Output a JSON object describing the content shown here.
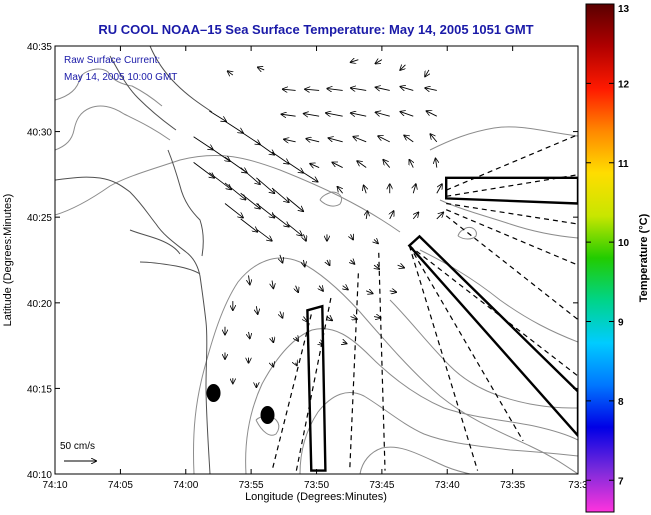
{
  "chart_data": {
    "type": "vector-field-map",
    "title": "RU COOL  NOAA–15  Sea Surface Temperature:  May 14, 2005 1051 GMT",
    "xlabel": "Longitude (Degrees:Minutes)",
    "ylabel": "Latitude (Degrees:Minutes)",
    "annotation_line1": "Raw Surface Current:",
    "annotation_line2": "May 14, 2005 10:00 GMT",
    "scale_label": "50 cm/s",
    "colorbar_label": "Temperature (°C)",
    "x_range_minutes_west": [
      -74.1667,
      -73.5
    ],
    "y_range": [
      40.1667,
      40.5833
    ],
    "x_ticks": [
      {
        "value": -74.1667,
        "label": "74:10"
      },
      {
        "value": -74.0833,
        "label": "74:05"
      },
      {
        "value": -74.0,
        "label": "74:00"
      },
      {
        "value": -73.9167,
        "label": "73:55"
      },
      {
        "value": -73.8333,
        "label": "73:50"
      },
      {
        "value": -73.75,
        "label": "73:45"
      },
      {
        "value": -73.6667,
        "label": "73:40"
      },
      {
        "value": -73.5833,
        "label": "73:35"
      },
      {
        "value": -73.5,
        "label": "73:3"
      }
    ],
    "y_ticks": [
      {
        "value": 40.1667,
        "label": "40:10"
      },
      {
        "value": 40.25,
        "label": "40:15"
      },
      {
        "value": 40.3333,
        "label": "40:20"
      },
      {
        "value": 40.4167,
        "label": "40:25"
      },
      {
        "value": 40.5,
        "label": "40:30"
      },
      {
        "value": 40.5833,
        "label": "40:35"
      }
    ],
    "colorbar_ticks": [
      {
        "value": 7,
        "label": "7"
      },
      {
        "value": 8,
        "label": "8"
      },
      {
        "value": 9,
        "label": "9"
      },
      {
        "value": 10,
        "label": "10"
      },
      {
        "value": 11,
        "label": "11"
      },
      {
        "value": 12,
        "label": "12"
      },
      {
        "value": 13,
        "label": "13"
      }
    ],
    "colorbar_range": [
      6.6,
      13
    ],
    "colorbar_stops": [
      "#ff33dd",
      "#7a2adb",
      "#0000e6",
      "#0077ff",
      "#00ccff",
      "#00d488",
      "#22cc00",
      "#c8e600",
      "#ffdd00",
      "#ff8800",
      "#ff1a00",
      "#b00000",
      "#5a0000"
    ],
    "stations": [
      {
        "name": "station-a",
        "lon": -73.9646,
        "lat": 40.2455
      },
      {
        "name": "station-b",
        "lon": -73.8958,
        "lat": 40.2241
      }
    ],
    "current_field": [
      {
        "lon": -73.99,
        "lat": 40.495,
        "u": 30,
        "v": -20
      },
      {
        "lon": -73.97,
        "lat": 40.485,
        "u": 32,
        "v": -22
      },
      {
        "lon": -73.95,
        "lat": 40.475,
        "u": 34,
        "v": -24
      },
      {
        "lon": -73.93,
        "lat": 40.465,
        "u": 30,
        "v": -26
      },
      {
        "lon": -73.91,
        "lat": 40.455,
        "u": 28,
        "v": -24
      },
      {
        "lon": -73.89,
        "lat": 40.445,
        "u": 26,
        "v": -22
      },
      {
        "lon": -73.87,
        "lat": 40.435,
        "u": 24,
        "v": -20
      },
      {
        "lon": -73.99,
        "lat": 40.47,
        "u": 32,
        "v": -24
      },
      {
        "lon": -73.97,
        "lat": 40.46,
        "u": 34,
        "v": -26
      },
      {
        "lon": -73.95,
        "lat": 40.45,
        "u": 32,
        "v": -26
      },
      {
        "lon": -73.93,
        "lat": 40.44,
        "u": 30,
        "v": -24
      },
      {
        "lon": -73.91,
        "lat": 40.43,
        "u": 28,
        "v": -22
      },
      {
        "lon": -73.89,
        "lat": 40.42,
        "u": 26,
        "v": -20
      },
      {
        "lon": -73.87,
        "lat": 40.41,
        "u": 22,
        "v": -18
      },
      {
        "lon": -73.95,
        "lat": 40.43,
        "u": 28,
        "v": -22
      },
      {
        "lon": -73.93,
        "lat": 40.415,
        "u": 26,
        "v": -20
      },
      {
        "lon": -73.91,
        "lat": 40.405,
        "u": 24,
        "v": -18
      },
      {
        "lon": -73.97,
        "lat": 40.52,
        "u": 26,
        "v": -16
      },
      {
        "lon": -73.95,
        "lat": 40.51,
        "u": 28,
        "v": -18
      },
      {
        "lon": -73.93,
        "lat": 40.5,
        "u": 30,
        "v": -20
      },
      {
        "lon": -73.91,
        "lat": 40.49,
        "u": 28,
        "v": -20
      },
      {
        "lon": -73.89,
        "lat": 40.48,
        "u": 26,
        "v": -18
      },
      {
        "lon": -73.87,
        "lat": 40.47,
        "u": 24,
        "v": -16
      },
      {
        "lon": -73.85,
        "lat": 40.46,
        "u": 22,
        "v": -14
      },
      {
        "lon": -73.86,
        "lat": 40.54,
        "u": -20,
        "v": 2
      },
      {
        "lon": -73.83,
        "lat": 40.54,
        "u": -22,
        "v": 2
      },
      {
        "lon": -73.8,
        "lat": 40.54,
        "u": -24,
        "v": 3
      },
      {
        "lon": -73.77,
        "lat": 40.54,
        "u": -24,
        "v": 4
      },
      {
        "lon": -73.74,
        "lat": 40.54,
        "u": -22,
        "v": 5
      },
      {
        "lon": -73.71,
        "lat": 40.54,
        "u": -20,
        "v": 6
      },
      {
        "lon": -73.68,
        "lat": 40.54,
        "u": -18,
        "v": 4
      },
      {
        "lon": -73.86,
        "lat": 40.515,
        "u": -22,
        "v": 3
      },
      {
        "lon": -73.83,
        "lat": 40.515,
        "u": -24,
        "v": 4
      },
      {
        "lon": -73.8,
        "lat": 40.515,
        "u": -26,
        "v": 5
      },
      {
        "lon": -73.77,
        "lat": 40.515,
        "u": -24,
        "v": 5
      },
      {
        "lon": -73.74,
        "lat": 40.515,
        "u": -22,
        "v": 6
      },
      {
        "lon": -73.71,
        "lat": 40.515,
        "u": -20,
        "v": 7
      },
      {
        "lon": -73.68,
        "lat": 40.515,
        "u": -16,
        "v": 8
      },
      {
        "lon": -73.86,
        "lat": 40.49,
        "u": -18,
        "v": 4
      },
      {
        "lon": -73.83,
        "lat": 40.49,
        "u": -20,
        "v": 5
      },
      {
        "lon": -73.8,
        "lat": 40.49,
        "u": -22,
        "v": 6
      },
      {
        "lon": -73.77,
        "lat": 40.49,
        "u": -20,
        "v": 8
      },
      {
        "lon": -73.74,
        "lat": 40.49,
        "u": -18,
        "v": 9
      },
      {
        "lon": -73.71,
        "lat": 40.49,
        "u": -14,
        "v": 10
      },
      {
        "lon": -73.68,
        "lat": 40.49,
        "u": -10,
        "v": 12
      },
      {
        "lon": -73.83,
        "lat": 40.465,
        "u": -14,
        "v": 6
      },
      {
        "lon": -73.8,
        "lat": 40.465,
        "u": -16,
        "v": 8
      },
      {
        "lon": -73.77,
        "lat": 40.465,
        "u": -14,
        "v": 10
      },
      {
        "lon": -73.74,
        "lat": 40.465,
        "u": -10,
        "v": 12
      },
      {
        "lon": -73.71,
        "lat": 40.465,
        "u": -6,
        "v": 12
      },
      {
        "lon": -73.68,
        "lat": 40.465,
        "u": -2,
        "v": 14
      },
      {
        "lon": -73.8,
        "lat": 40.44,
        "u": -8,
        "v": 10
      },
      {
        "lon": -73.77,
        "lat": 40.44,
        "u": -4,
        "v": 12
      },
      {
        "lon": -73.74,
        "lat": 40.44,
        "u": 0,
        "v": 14
      },
      {
        "lon": -73.71,
        "lat": 40.44,
        "u": 4,
        "v": 14
      },
      {
        "lon": -73.68,
        "lat": 40.44,
        "u": 8,
        "v": 14
      },
      {
        "lon": -73.77,
        "lat": 40.415,
        "u": 2,
        "v": 12
      },
      {
        "lon": -73.74,
        "lat": 40.415,
        "u": 6,
        "v": 12
      },
      {
        "lon": -73.71,
        "lat": 40.415,
        "u": 8,
        "v": 10
      },
      {
        "lon": -73.68,
        "lat": 40.415,
        "u": 10,
        "v": 10
      },
      {
        "lon": -73.78,
        "lat": 40.57,
        "u": -12,
        "v": -4
      },
      {
        "lon": -73.75,
        "lat": 40.57,
        "u": -10,
        "v": -6
      },
      {
        "lon": -73.72,
        "lat": 40.565,
        "u": -8,
        "v": -8
      },
      {
        "lon": -73.69,
        "lat": 40.56,
        "u": -6,
        "v": -10
      },
      {
        "lon": -73.9,
        "lat": 40.56,
        "u": -10,
        "v": 4
      },
      {
        "lon": -73.94,
        "lat": 40.555,
        "u": -8,
        "v": 6
      },
      {
        "lon": -73.85,
        "lat": 40.4,
        "u": 4,
        "v": -10
      },
      {
        "lon": -73.82,
        "lat": 40.4,
        "u": 0,
        "v": -10
      },
      {
        "lon": -73.79,
        "lat": 40.4,
        "u": 4,
        "v": -8
      },
      {
        "lon": -73.76,
        "lat": 40.395,
        "u": 6,
        "v": -6
      },
      {
        "lon": -73.88,
        "lat": 40.38,
        "u": 4,
        "v": -12
      },
      {
        "lon": -73.85,
        "lat": 40.375,
        "u": 2,
        "v": -10
      },
      {
        "lon": -73.82,
        "lat": 40.375,
        "u": 4,
        "v": -8
      },
      {
        "lon": -73.79,
        "lat": 40.375,
        "u": 6,
        "v": -6
      },
      {
        "lon": -73.76,
        "lat": 40.37,
        "u": 8,
        "v": -6
      },
      {
        "lon": -73.73,
        "lat": 40.37,
        "u": 10,
        "v": -4
      },
      {
        "lon": -73.92,
        "lat": 40.36,
        "u": 2,
        "v": -14
      },
      {
        "lon": -73.89,
        "lat": 40.355,
        "u": 2,
        "v": -12
      },
      {
        "lon": -73.86,
        "lat": 40.35,
        "u": 4,
        "v": -10
      },
      {
        "lon": -73.83,
        "lat": 40.35,
        "u": 6,
        "v": -8
      },
      {
        "lon": -73.8,
        "lat": 40.35,
        "u": 8,
        "v": -6
      },
      {
        "lon": -73.77,
        "lat": 40.345,
        "u": 10,
        "v": -4
      },
      {
        "lon": -73.74,
        "lat": 40.345,
        "u": 10,
        "v": -2
      },
      {
        "lon": -73.94,
        "lat": 40.335,
        "u": 0,
        "v": -14
      },
      {
        "lon": -73.91,
        "lat": 40.33,
        "u": 2,
        "v": -12
      },
      {
        "lon": -73.88,
        "lat": 40.325,
        "u": 4,
        "v": -10
      },
      {
        "lon": -73.85,
        "lat": 40.32,
        "u": 6,
        "v": -8
      },
      {
        "lon": -73.82,
        "lat": 40.32,
        "u": 8,
        "v": -6
      },
      {
        "lon": -73.79,
        "lat": 40.32,
        "u": 10,
        "v": -4
      },
      {
        "lon": -73.76,
        "lat": 40.32,
        "u": 10,
        "v": -2
      },
      {
        "lon": -73.95,
        "lat": 40.31,
        "u": 0,
        "v": -12
      },
      {
        "lon": -73.92,
        "lat": 40.305,
        "u": 2,
        "v": -10
      },
      {
        "lon": -73.89,
        "lat": 40.3,
        "u": 2,
        "v": -8
      },
      {
        "lon": -73.86,
        "lat": 40.3,
        "u": 4,
        "v": -6
      },
      {
        "lon": -73.83,
        "lat": 40.295,
        "u": 6,
        "v": -4
      },
      {
        "lon": -73.8,
        "lat": 40.295,
        "u": 6,
        "v": -2
      },
      {
        "lon": -73.95,
        "lat": 40.285,
        "u": 0,
        "v": -10
      },
      {
        "lon": -73.92,
        "lat": 40.28,
        "u": 0,
        "v": -8
      },
      {
        "lon": -73.89,
        "lat": 40.275,
        "u": 2,
        "v": -6
      },
      {
        "lon": -73.86,
        "lat": 40.275,
        "u": 2,
        "v": -4
      },
      {
        "lon": -73.94,
        "lat": 40.26,
        "u": 0,
        "v": -8
      },
      {
        "lon": -73.91,
        "lat": 40.255,
        "u": 0,
        "v": -6
      }
    ],
    "radial_lines": [
      {
        "lon1": -73.668,
        "lat1": 40.443,
        "lon2": -73.5,
        "lat2": 40.497
      },
      {
        "lon1": -73.668,
        "lat1": 40.437,
        "lon2": -73.5,
        "lat2": 40.458
      },
      {
        "lon1": -73.668,
        "lat1": 40.43,
        "lon2": -73.5,
        "lat2": 40.41
      },
      {
        "lon1": -73.668,
        "lat1": 40.424,
        "lon2": -73.5,
        "lat2": 40.37
      },
      {
        "lon1": -73.668,
        "lat1": 40.418,
        "lon2": -73.5,
        "lat2": 40.317
      },
      {
        "lon1": -73.715,
        "lat1": 40.389,
        "lon2": -73.5,
        "lat2": 40.262
      },
      {
        "lon1": -73.715,
        "lat1": 40.389,
        "lon2": -73.57,
        "lat2": 40.199
      },
      {
        "lon1": -73.715,
        "lat1": 40.389,
        "lon2": -73.628,
        "lat2": 40.17
      },
      {
        "lon1": -73.754,
        "lat1": 40.382,
        "lon2": -73.746,
        "lat2": 40.17
      },
      {
        "lon1": -73.78,
        "lat1": 40.362,
        "lon2": -73.791,
        "lat2": 40.17
      },
      {
        "lon1": -73.815,
        "lat1": 40.338,
        "lon2": -73.859,
        "lat2": 40.17
      },
      {
        "lon1": -73.84,
        "lat1": 40.322,
        "lon2": -73.89,
        "lat2": 40.17
      }
    ],
    "bold_beams": [
      {
        "name": "beam-east",
        "points": [
          [
            -73.668,
            40.455
          ],
          [
            -73.5,
            40.455
          ],
          [
            -73.5,
            40.43
          ],
          [
            -73.668,
            40.435
          ]
        ]
      },
      {
        "name": "beam-southeast",
        "points": [
          [
            -73.715,
            40.389
          ],
          [
            -73.702,
            40.398
          ],
          [
            -73.5,
            40.247
          ],
          [
            -73.5,
            40.204
          ]
        ]
      },
      {
        "name": "beam-south",
        "points": [
          [
            -73.845,
            40.326
          ],
          [
            -73.826,
            40.33
          ],
          [
            -73.822,
            40.17
          ],
          [
            -73.84,
            40.17
          ]
        ]
      }
    ]
  }
}
